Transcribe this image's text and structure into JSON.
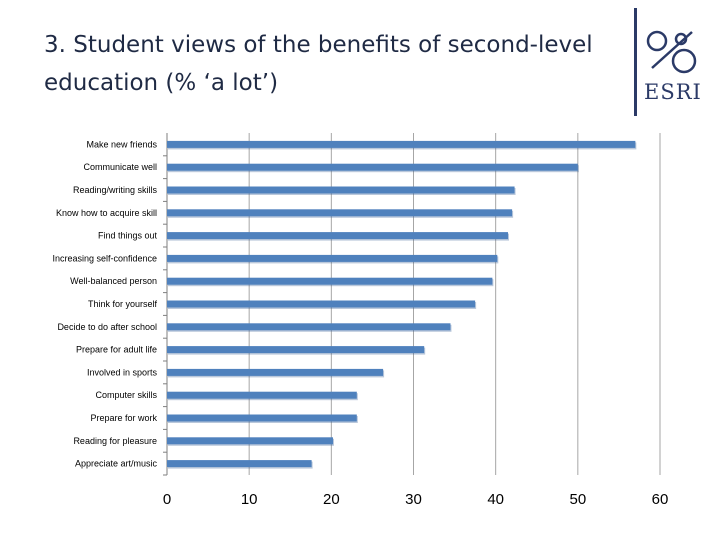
{
  "title": "3. Student views of the benefits of second-level education (% ‘a lot’)",
  "logo": {
    "text": "ESRI"
  },
  "colors": {
    "bar": "#4f81bd",
    "bar_shadow": "#3a6299",
    "grid": "#a6a6a6",
    "axis": "#7f7f7f",
    "title": "#1f2a44",
    "logo": "#2b3a67"
  },
  "chart_data": {
    "type": "bar",
    "orientation": "horizontal",
    "categories": [
      "Make new friends",
      "Communicate well",
      "Reading/writing skills",
      "Know how to acquire skill",
      "Find things out",
      "Increasing self-confidence",
      "Well-balanced person",
      "Think for yourself",
      "Decide to do after school",
      "Prepare for adult life",
      "Involved in sports",
      "Computer skills",
      "Prepare for work",
      "Reading for pleasure",
      "Appreciate art/music"
    ],
    "values": [
      57,
      50,
      42.3,
      42,
      41.5,
      40.2,
      39.6,
      37.5,
      34.5,
      31.3,
      26.3,
      23.1,
      23.1,
      20.2,
      17.6
    ],
    "xlim": [
      0,
      60
    ],
    "xticks": [
      0,
      10,
      20,
      30,
      40,
      50,
      60
    ],
    "grid": true,
    "legend": "none"
  }
}
